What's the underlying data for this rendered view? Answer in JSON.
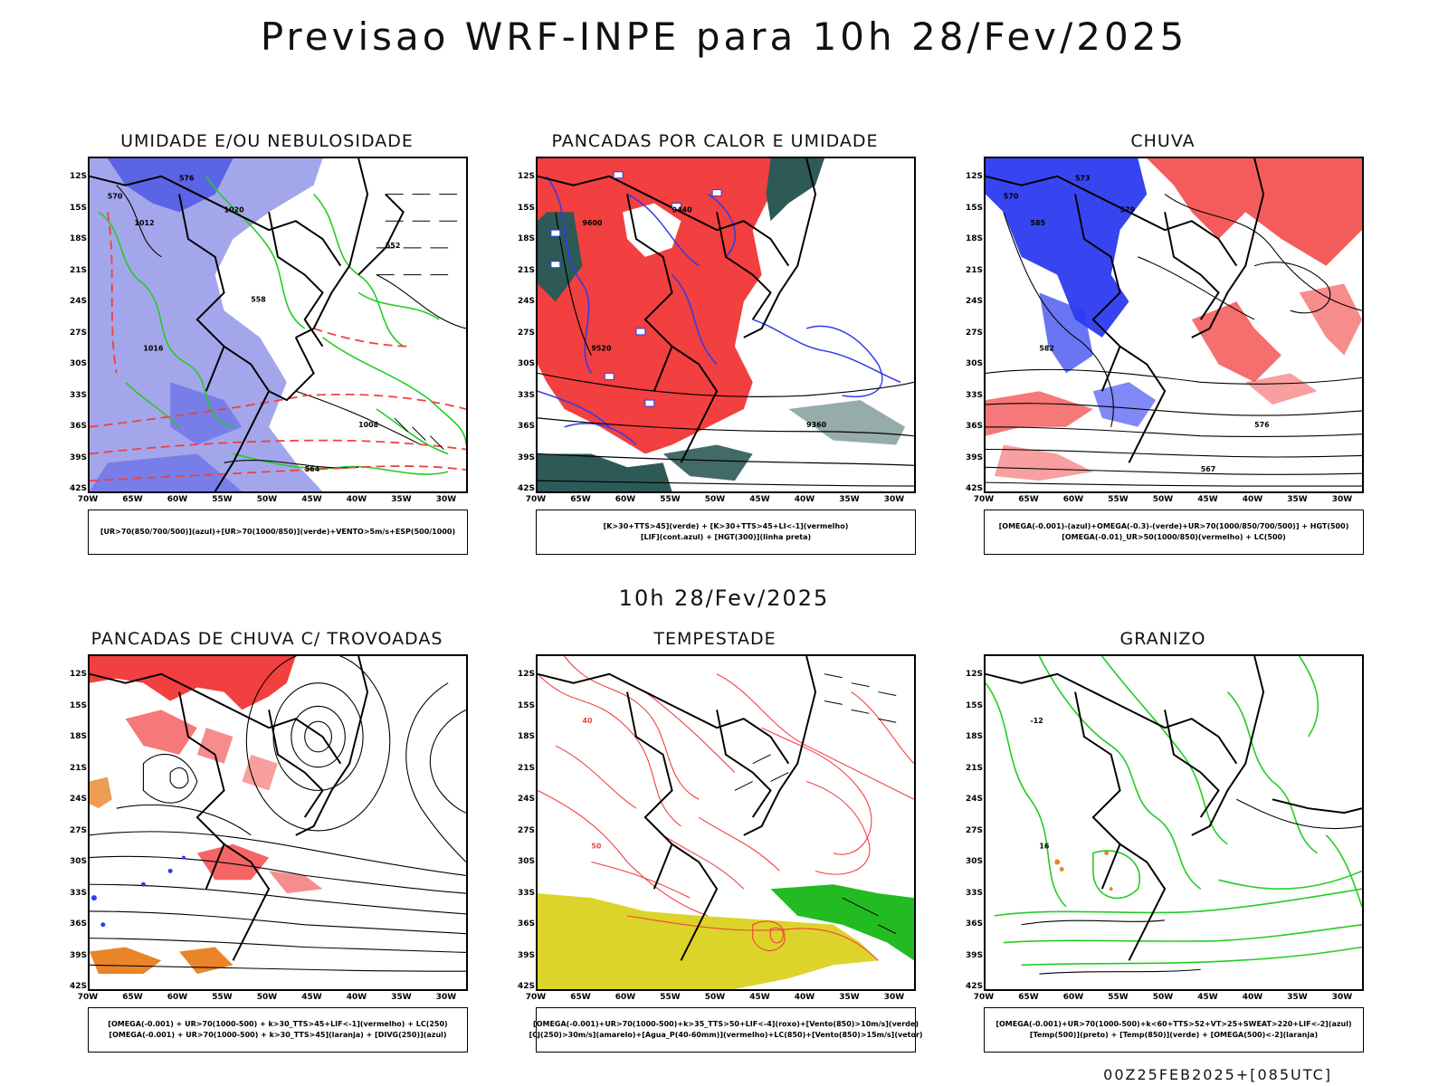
{
  "title": "Previsao WRF-INPE  para 10h 28/Fev/2025",
  "mid_title": "10h 28/Fev/2025",
  "footer": "00Z25FEB2025+[085UTC]",
  "axes": {
    "lat": [
      "12S",
      "15S",
      "18S",
      "21S",
      "24S",
      "27S",
      "30S",
      "33S",
      "36S",
      "39S",
      "42S"
    ],
    "lon": [
      "70W",
      "65W",
      "60W",
      "55W",
      "50W",
      "45W",
      "40W",
      "35W",
      "30W"
    ]
  },
  "colors": {
    "red": "#f23f3f",
    "blue": "#2b3bef",
    "lightblue": "#a4a6ec",
    "green": "#22cc22",
    "darkteal": "#2d5a57",
    "yellow": "#dcd42a",
    "orange": "#e98428",
    "black": "#000000"
  },
  "panels": [
    {
      "title": "UMIDADE E/OU NEBULOSIDADE",
      "legend": [
        "[UR>70(850/700/500)](azul)+[UR>70(1000/850)](verde)+VENTO>5m/s+ESP(500/1000)"
      ],
      "labels": [
        "1012",
        "1016",
        "1020",
        "1008",
        "576",
        "570",
        "564",
        "558",
        "552"
      ]
    },
    {
      "title": "PANCADAS POR CALOR E UMIDADE",
      "legend": [
        "[K>30+TTS>45](verde) + [K>30+TTS>45+LI<-1](vermelho)",
        "[LIF](cont.azul) + [HGT(300)](linha preta)"
      ],
      "labels": [
        "9600",
        "9520",
        "9440",
        "9360"
      ]
    },
    {
      "title": "CHUVA",
      "legend": [
        "[OMEGA(-0.001)-(azul)+OMEGA(-0.3)-(verde)+UR>70(1000/850/700/500)] + HGT(500)",
        "[OMEGA(-0.01)_UR>50(1000/850)(vermelho) + LC(500)"
      ],
      "labels": [
        "585",
        "582",
        "579",
        "576",
        "573",
        "570",
        "567"
      ]
    },
    {
      "title": "PANCADAS DE CHUVA C/ TROVOADAS",
      "legend": [
        "[OMEGA(-0.001) + UR>70(1000-500) + k>30_TTS>45+LIF<-1](vermelho) + LC(250)",
        "[OMEGA(-0.001) + UR>70(1000-500) + k>30_TTS>45](laranja) + [DIVG(250)](azul)"
      ],
      "labels": []
    },
    {
      "title": "TEMPESTADE",
      "legend": [
        "[OMEGA(-0.001)+UR>70(1000-500)+k>35_TTS>50+LIF<-4](roxo)+[Vento(850)>10m/s](verde)",
        "[CJ(250)>30m/s](amarelo)+[Agua_P(40-60mm)](vermelho)+LC(850)+[Vento(850)>15m/s](vetor)"
      ],
      "labels": [
        "40",
        "50"
      ]
    },
    {
      "title": "GRANIZO",
      "legend": [
        "[OMEGA(-0.001)+UR>70(1000-500)+k<60+TTS>52+VT>25+SWEAT>220+LIF<-2](azul)",
        "[Temp(500)](preto) + [Temp(850)](verde) + [OMEGA(500)<-2](laranja)"
      ],
      "labels": [
        "-12",
        "16"
      ]
    }
  ]
}
